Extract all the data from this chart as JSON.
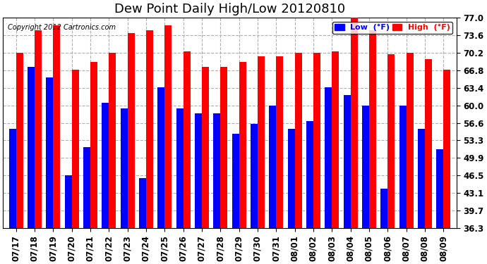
{
  "title": "Dew Point Daily High/Low 20120810",
  "copyright": "Copyright 2012 Cartronics.com",
  "labels": [
    "07/17",
    "07/18",
    "07/19",
    "07/20",
    "07/21",
    "07/22",
    "07/23",
    "07/24",
    "07/25",
    "07/26",
    "07/27",
    "07/28",
    "07/29",
    "07/30",
    "07/31",
    "08/01",
    "08/02",
    "08/03",
    "08/04",
    "08/05",
    "08/06",
    "08/07",
    "08/08",
    "08/09"
  ],
  "high": [
    70.2,
    74.5,
    75.5,
    67.0,
    68.5,
    70.2,
    74.0,
    74.5,
    75.5,
    70.5,
    67.5,
    67.5,
    68.5,
    69.5,
    69.5,
    70.2,
    70.2,
    70.5,
    77.0,
    74.5,
    70.0,
    70.2,
    69.0,
    67.0
  ],
  "low": [
    55.5,
    67.5,
    65.5,
    46.5,
    52.0,
    60.5,
    59.5,
    46.0,
    63.5,
    59.5,
    58.5,
    58.5,
    54.5,
    56.5,
    60.0,
    55.5,
    57.0,
    63.5,
    62.0,
    60.0,
    44.0,
    60.0,
    55.5,
    51.5
  ],
  "yticks": [
    36.3,
    39.7,
    43.1,
    46.5,
    49.9,
    53.3,
    56.6,
    60.0,
    63.4,
    66.8,
    70.2,
    73.6,
    77.0
  ],
  "ylim_low": 36.3,
  "ylim_high": 77.0,
  "bar_width": 0.38,
  "blue": "#0000ff",
  "red": "#ff0000",
  "bg_color": "#ffffff",
  "grid_color": "#b0b0b0",
  "title_fontsize": 13,
  "tick_fontsize": 8.5,
  "copyright_fontsize": 7,
  "legend_label_low": "Low  (°F)",
  "legend_label_high": "High  (°F)"
}
